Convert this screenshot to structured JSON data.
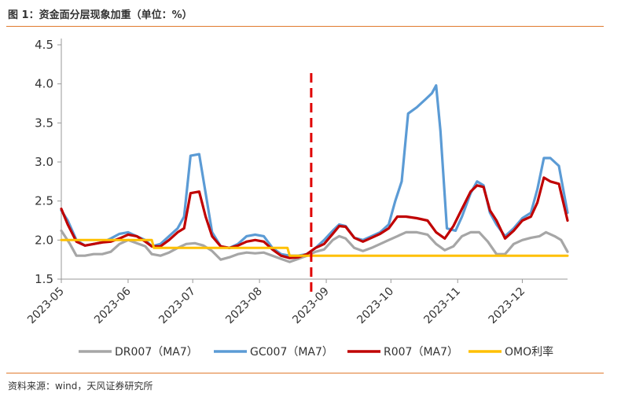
{
  "header": {
    "title": "图 1：资金面分层现象加重（单位：%）"
  },
  "footer": {
    "source": "资料来源：wind，天风证券研究所"
  },
  "colors": {
    "DR007": "#a6a6a6",
    "GC007": "#5b9bd5",
    "R007": "#c00000",
    "OMO": "#ffc000",
    "marker": "#e00000",
    "rule": "#e07a2e"
  },
  "chart_data": {
    "type": "line",
    "title": "",
    "xlabel": "",
    "ylabel": "",
    "ylim": [
      1.5,
      4.5
    ],
    "yticks": [
      "1.5",
      "2.0",
      "2.5",
      "3.0",
      "3.5",
      "4.0",
      "4.5"
    ],
    "xticks": [
      "2023-05",
      "2023-06",
      "2023-07",
      "2023-08",
      "2023-09",
      "2023-10",
      "2023-11",
      "2023-12"
    ],
    "grid": false,
    "legend_position": "bottom",
    "vertical_marker_date": "2023-08-25",
    "series": [
      {
        "name": "DR007（MA7）",
        "key": "DR007",
        "points": [
          [
            "2023-05-01",
            2.12
          ],
          [
            "2023-05-05",
            1.95
          ],
          [
            "2023-05-08",
            1.8
          ],
          [
            "2023-05-12",
            1.8
          ],
          [
            "2023-05-16",
            1.82
          ],
          [
            "2023-05-20",
            1.82
          ],
          [
            "2023-05-24",
            1.85
          ],
          [
            "2023-05-28",
            1.95
          ],
          [
            "2023-06-01",
            2.0
          ],
          [
            "2023-06-05",
            1.96
          ],
          [
            "2023-06-09",
            1.92
          ],
          [
            "2023-06-12",
            1.82
          ],
          [
            "2023-06-16",
            1.8
          ],
          [
            "2023-06-20",
            1.84
          ],
          [
            "2023-06-24",
            1.9
          ],
          [
            "2023-06-28",
            1.95
          ],
          [
            "2023-07-02",
            1.96
          ],
          [
            "2023-07-06",
            1.93
          ],
          [
            "2023-07-10",
            1.86
          ],
          [
            "2023-07-14",
            1.75
          ],
          [
            "2023-07-18",
            1.78
          ],
          [
            "2023-07-22",
            1.82
          ],
          [
            "2023-07-26",
            1.84
          ],
          [
            "2023-07-30",
            1.83
          ],
          [
            "2023-08-03",
            1.84
          ],
          [
            "2023-08-07",
            1.8
          ],
          [
            "2023-08-11",
            1.76
          ],
          [
            "2023-08-15",
            1.72
          ],
          [
            "2023-08-19",
            1.76
          ],
          [
            "2023-08-23",
            1.8
          ],
          [
            "2023-08-27",
            1.85
          ],
          [
            "2023-08-31",
            1.88
          ],
          [
            "2023-09-04",
            2.0
          ],
          [
            "2023-09-07",
            2.05
          ],
          [
            "2023-09-10",
            2.02
          ],
          [
            "2023-09-14",
            1.9
          ],
          [
            "2023-09-18",
            1.86
          ],
          [
            "2023-09-22",
            1.9
          ],
          [
            "2023-09-26",
            1.95
          ],
          [
            "2023-09-30",
            2.0
          ],
          [
            "2023-10-04",
            2.05
          ],
          [
            "2023-10-08",
            2.1
          ],
          [
            "2023-10-13",
            2.1
          ],
          [
            "2023-10-18",
            2.07
          ],
          [
            "2023-10-22",
            1.95
          ],
          [
            "2023-10-26",
            1.87
          ],
          [
            "2023-10-30",
            1.92
          ],
          [
            "2023-11-03",
            2.05
          ],
          [
            "2023-11-07",
            2.1
          ],
          [
            "2023-11-11",
            2.1
          ],
          [
            "2023-11-15",
            1.98
          ],
          [
            "2023-11-19",
            1.82
          ],
          [
            "2023-11-23",
            1.82
          ],
          [
            "2023-11-27",
            1.95
          ],
          [
            "2023-12-01",
            2.0
          ],
          [
            "2023-12-05",
            2.03
          ],
          [
            "2023-12-09",
            2.05
          ],
          [
            "2023-12-12",
            2.1
          ],
          [
            "2023-12-16",
            2.05
          ],
          [
            "2023-12-19",
            2.0
          ],
          [
            "2023-12-22",
            1.85
          ]
        ]
      },
      {
        "name": "GC007（MA7）",
        "key": "GC007",
        "points": [
          [
            "2023-05-01",
            2.38
          ],
          [
            "2023-05-04",
            2.25
          ],
          [
            "2023-05-08",
            2.0
          ],
          [
            "2023-05-12",
            1.93
          ],
          [
            "2023-05-16",
            1.95
          ],
          [
            "2023-05-20",
            1.97
          ],
          [
            "2023-05-24",
            2.02
          ],
          [
            "2023-05-28",
            2.08
          ],
          [
            "2023-06-01",
            2.1
          ],
          [
            "2023-06-05",
            2.05
          ],
          [
            "2023-06-09",
            2.0
          ],
          [
            "2023-06-12",
            1.92
          ],
          [
            "2023-06-16",
            1.95
          ],
          [
            "2023-06-20",
            2.05
          ],
          [
            "2023-06-24",
            2.15
          ],
          [
            "2023-06-27",
            2.3
          ],
          [
            "2023-06-30",
            3.08
          ],
          [
            "2023-07-04",
            3.1
          ],
          [
            "2023-07-07",
            2.6
          ],
          [
            "2023-07-10",
            2.1
          ],
          [
            "2023-07-14",
            1.92
          ],
          [
            "2023-07-18",
            1.9
          ],
          [
            "2023-07-22",
            1.95
          ],
          [
            "2023-07-26",
            2.05
          ],
          [
            "2023-07-30",
            2.07
          ],
          [
            "2023-08-03",
            2.05
          ],
          [
            "2023-08-07",
            1.9
          ],
          [
            "2023-08-11",
            1.82
          ],
          [
            "2023-08-15",
            1.8
          ],
          [
            "2023-08-19",
            1.8
          ],
          [
            "2023-08-23",
            1.82
          ],
          [
            "2023-08-27",
            1.9
          ],
          [
            "2023-08-31",
            2.0
          ],
          [
            "2023-09-04",
            2.12
          ],
          [
            "2023-09-07",
            2.2
          ],
          [
            "2023-09-10",
            2.18
          ],
          [
            "2023-09-14",
            2.03
          ],
          [
            "2023-09-18",
            2.0
          ],
          [
            "2023-09-22",
            2.05
          ],
          [
            "2023-09-26",
            2.1
          ],
          [
            "2023-09-30",
            2.2
          ],
          [
            "2023-10-03",
            2.5
          ],
          [
            "2023-10-06",
            2.75
          ],
          [
            "2023-10-09",
            3.62
          ],
          [
            "2023-10-13",
            3.7
          ],
          [
            "2023-10-17",
            3.8
          ],
          [
            "2023-10-20",
            3.88
          ],
          [
            "2023-10-22",
            3.98
          ],
          [
            "2023-10-24",
            3.4
          ],
          [
            "2023-10-27",
            2.15
          ],
          [
            "2023-10-31",
            2.12
          ],
          [
            "2023-11-03",
            2.3
          ],
          [
            "2023-11-07",
            2.6
          ],
          [
            "2023-11-10",
            2.75
          ],
          [
            "2023-11-13",
            2.7
          ],
          [
            "2023-11-16",
            2.35
          ],
          [
            "2023-11-19",
            2.2
          ],
          [
            "2023-11-23",
            2.05
          ],
          [
            "2023-11-27",
            2.15
          ],
          [
            "2023-12-01",
            2.28
          ],
          [
            "2023-12-05",
            2.35
          ],
          [
            "2023-12-08",
            2.65
          ],
          [
            "2023-12-11",
            3.05
          ],
          [
            "2023-12-14",
            3.05
          ],
          [
            "2023-12-18",
            2.95
          ],
          [
            "2023-12-22",
            2.35
          ]
        ]
      },
      {
        "name": "R007（MA7）",
        "key": "R007",
        "points": [
          [
            "2023-05-01",
            2.4
          ],
          [
            "2023-05-04",
            2.2
          ],
          [
            "2023-05-08",
            1.98
          ],
          [
            "2023-05-12",
            1.93
          ],
          [
            "2023-05-16",
            1.95
          ],
          [
            "2023-05-20",
            1.97
          ],
          [
            "2023-05-24",
            1.98
          ],
          [
            "2023-05-28",
            2.02
          ],
          [
            "2023-06-01",
            2.07
          ],
          [
            "2023-06-05",
            2.05
          ],
          [
            "2023-06-09",
            1.98
          ],
          [
            "2023-06-12",
            1.92
          ],
          [
            "2023-06-16",
            1.92
          ],
          [
            "2023-06-20",
            2.0
          ],
          [
            "2023-06-24",
            2.1
          ],
          [
            "2023-06-27",
            2.15
          ],
          [
            "2023-06-30",
            2.6
          ],
          [
            "2023-07-04",
            2.62
          ],
          [
            "2023-07-07",
            2.3
          ],
          [
            "2023-07-10",
            2.05
          ],
          [
            "2023-07-14",
            1.92
          ],
          [
            "2023-07-18",
            1.9
          ],
          [
            "2023-07-22",
            1.93
          ],
          [
            "2023-07-26",
            1.98
          ],
          [
            "2023-07-30",
            2.0
          ],
          [
            "2023-08-03",
            1.98
          ],
          [
            "2023-08-07",
            1.88
          ],
          [
            "2023-08-11",
            1.8
          ],
          [
            "2023-08-15",
            1.77
          ],
          [
            "2023-08-19",
            1.78
          ],
          [
            "2023-08-23",
            1.82
          ],
          [
            "2023-08-27",
            1.9
          ],
          [
            "2023-08-31",
            1.95
          ],
          [
            "2023-09-04",
            2.08
          ],
          [
            "2023-09-07",
            2.18
          ],
          [
            "2023-09-10",
            2.17
          ],
          [
            "2023-09-14",
            2.03
          ],
          [
            "2023-09-18",
            1.98
          ],
          [
            "2023-09-22",
            2.03
          ],
          [
            "2023-09-26",
            2.08
          ],
          [
            "2023-09-30",
            2.15
          ],
          [
            "2023-10-04",
            2.3
          ],
          [
            "2023-10-08",
            2.3
          ],
          [
            "2023-10-13",
            2.28
          ],
          [
            "2023-10-18",
            2.25
          ],
          [
            "2023-10-22",
            2.1
          ],
          [
            "2023-10-26",
            2.02
          ],
          [
            "2023-10-30",
            2.18
          ],
          [
            "2023-11-03",
            2.4
          ],
          [
            "2023-11-07",
            2.62
          ],
          [
            "2023-11-10",
            2.7
          ],
          [
            "2023-11-13",
            2.68
          ],
          [
            "2023-11-16",
            2.38
          ],
          [
            "2023-11-19",
            2.25
          ],
          [
            "2023-11-23",
            2.02
          ],
          [
            "2023-11-27",
            2.12
          ],
          [
            "2023-12-01",
            2.25
          ],
          [
            "2023-12-05",
            2.3
          ],
          [
            "2023-12-08",
            2.48
          ],
          [
            "2023-12-11",
            2.8
          ],
          [
            "2023-12-14",
            2.75
          ],
          [
            "2023-12-18",
            2.72
          ],
          [
            "2023-12-22",
            2.25
          ]
        ]
      },
      {
        "name": "OMO利率",
        "key": "OMO",
        "points": [
          [
            "2023-05-01",
            2.0
          ],
          [
            "2023-06-12",
            2.0
          ],
          [
            "2023-06-13",
            1.9
          ],
          [
            "2023-08-14",
            1.9
          ],
          [
            "2023-08-15",
            1.8
          ],
          [
            "2023-12-22",
            1.8
          ]
        ]
      }
    ]
  }
}
